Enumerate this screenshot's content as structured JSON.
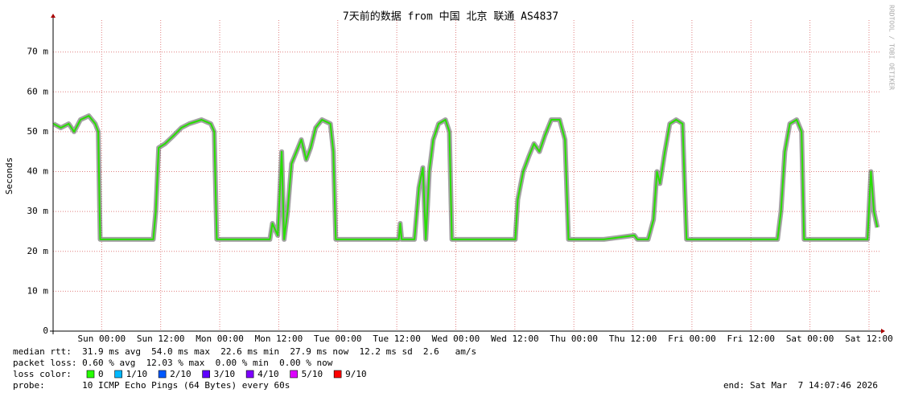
{
  "chart_data": {
    "type": "line",
    "title": "7天前的数据 from 中国 北京 联通 AS4837",
    "y_label": "Seconds",
    "watermark": "RRDTOOL / TOBI OETIKER",
    "xlim": [
      -9.87,
      158.13
    ],
    "xticks": [
      {
        "value": 0,
        "label": "Sun 00:00"
      },
      {
        "value": 12,
        "label": "Sun 12:00"
      },
      {
        "value": 24,
        "label": "Mon 00:00"
      },
      {
        "value": 36,
        "label": "Mon 12:00"
      },
      {
        "value": 48,
        "label": "Tue 00:00"
      },
      {
        "value": 60,
        "label": "Tue 12:00"
      },
      {
        "value": 72,
        "label": "Wed 00:00"
      },
      {
        "value": 84,
        "label": "Wed 12:00"
      },
      {
        "value": 96,
        "label": "Thu 00:00"
      },
      {
        "value": 108,
        "label": "Thu 12:00"
      },
      {
        "value": 120,
        "label": "Fri 00:00"
      },
      {
        "value": 132,
        "label": "Fri 12:00"
      },
      {
        "value": 144,
        "label": "Sat 00:00"
      },
      {
        "value": 156,
        "label": "Sat 12:00"
      }
    ],
    "ylim": [
      0,
      78
    ],
    "yticks": [
      0,
      {
        "value": 10,
        "label": "10 m"
      },
      {
        "value": 20,
        "label": "20 m"
      },
      {
        "value": 30,
        "label": "30 m"
      },
      {
        "value": 40,
        "label": "40 m"
      },
      {
        "value": 50,
        "label": "50 m"
      },
      {
        "value": 60,
        "label": "60 m"
      },
      {
        "value": 70,
        "label": "70 m"
      }
    ],
    "grid": true,
    "x": [
      -9.8,
      -8.3,
      -6.7,
      -5.6,
      -4.3,
      -2.6,
      -1.3,
      -0.7,
      -0.3,
      0.7,
      5.6,
      10.5,
      11.0,
      11.6,
      12.9,
      14.6,
      16.2,
      17.8,
      20.3,
      22.2,
      22.9,
      23.4,
      28.5,
      34.2,
      34.7,
      35.8,
      36.6,
      37.1,
      37.8,
      38.6,
      39.6,
      40.6,
      41.6,
      42.5,
      43.5,
      44.8,
      46.5,
      47.1,
      47.6,
      53.0,
      60.4,
      60.7,
      61.0,
      63.6,
      64.5,
      65.3,
      65.9,
      66.6,
      67.4,
      68.5,
      69.9,
      70.7,
      71.2,
      77.5,
      84.1,
      84.6,
      85.7,
      86.9,
      87.9,
      89.0,
      90.1,
      91.4,
      93.1,
      94.2,
      94.9,
      102.1,
      108.3,
      108.9,
      111.1,
      112.2,
      112.9,
      113.5,
      114.5,
      115.5,
      116.8,
      118.1,
      118.9,
      126.6,
      137.4,
      138.1,
      138.9,
      139.9,
      141.3,
      142.3,
      142.8,
      149.5,
      155.7,
      156.4,
      157.0,
      157.7
    ],
    "series": [
      {
        "color": "#26e000",
        "values": [
          52,
          51,
          52,
          50,
          53,
          54,
          52,
          50,
          23,
          23,
          23,
          23,
          30,
          46,
          47,
          49,
          51,
          52,
          53,
          52,
          50,
          23,
          23,
          23,
          27,
          24,
          45,
          23,
          30,
          42,
          45,
          48,
          43,
          46,
          51,
          53,
          52,
          45,
          23,
          23,
          23,
          27,
          23,
          23,
          36,
          41,
          23,
          40,
          48,
          52,
          53,
          50,
          23,
          23,
          23,
          33,
          40,
          44,
          47,
          45,
          49,
          53,
          53,
          48,
          23,
          23,
          24,
          23,
          23,
          28,
          40,
          37,
          45,
          52,
          53,
          52,
          23,
          23,
          23,
          30,
          45,
          52,
          53,
          50,
          23,
          23,
          23,
          40,
          30,
          26
        ]
      }
    ],
    "stats": {
      "median_rtt": "median rtt:  31.9 ms avg  54.0 ms max  22.6 ms min  27.9 ms now  12.2 ms sd  2.6   am/s",
      "packet_loss": "packet loss: 0.60 % avg  12.03 % max  0.00 % min  0.00 % now",
      "loss_color_label": "loss color:",
      "probe": "probe:       10 ICMP Echo Pings (64 Bytes) every 60s",
      "end": "end: Sat Mar  7 14:07:46 2026"
    },
    "loss_colors": [
      {
        "label": "0",
        "color": "#26ff00"
      },
      {
        "label": "1/10",
        "color": "#00b8ff"
      },
      {
        "label": "2/10",
        "color": "#0059ff"
      },
      {
        "label": "3/10",
        "color": "#5e00ff"
      },
      {
        "label": "4/10",
        "color": "#7e00ff"
      },
      {
        "label": "5/10",
        "color": "#dd00ff"
      },
      {
        "label": "9/10",
        "color": "#ff0000"
      }
    ]
  }
}
